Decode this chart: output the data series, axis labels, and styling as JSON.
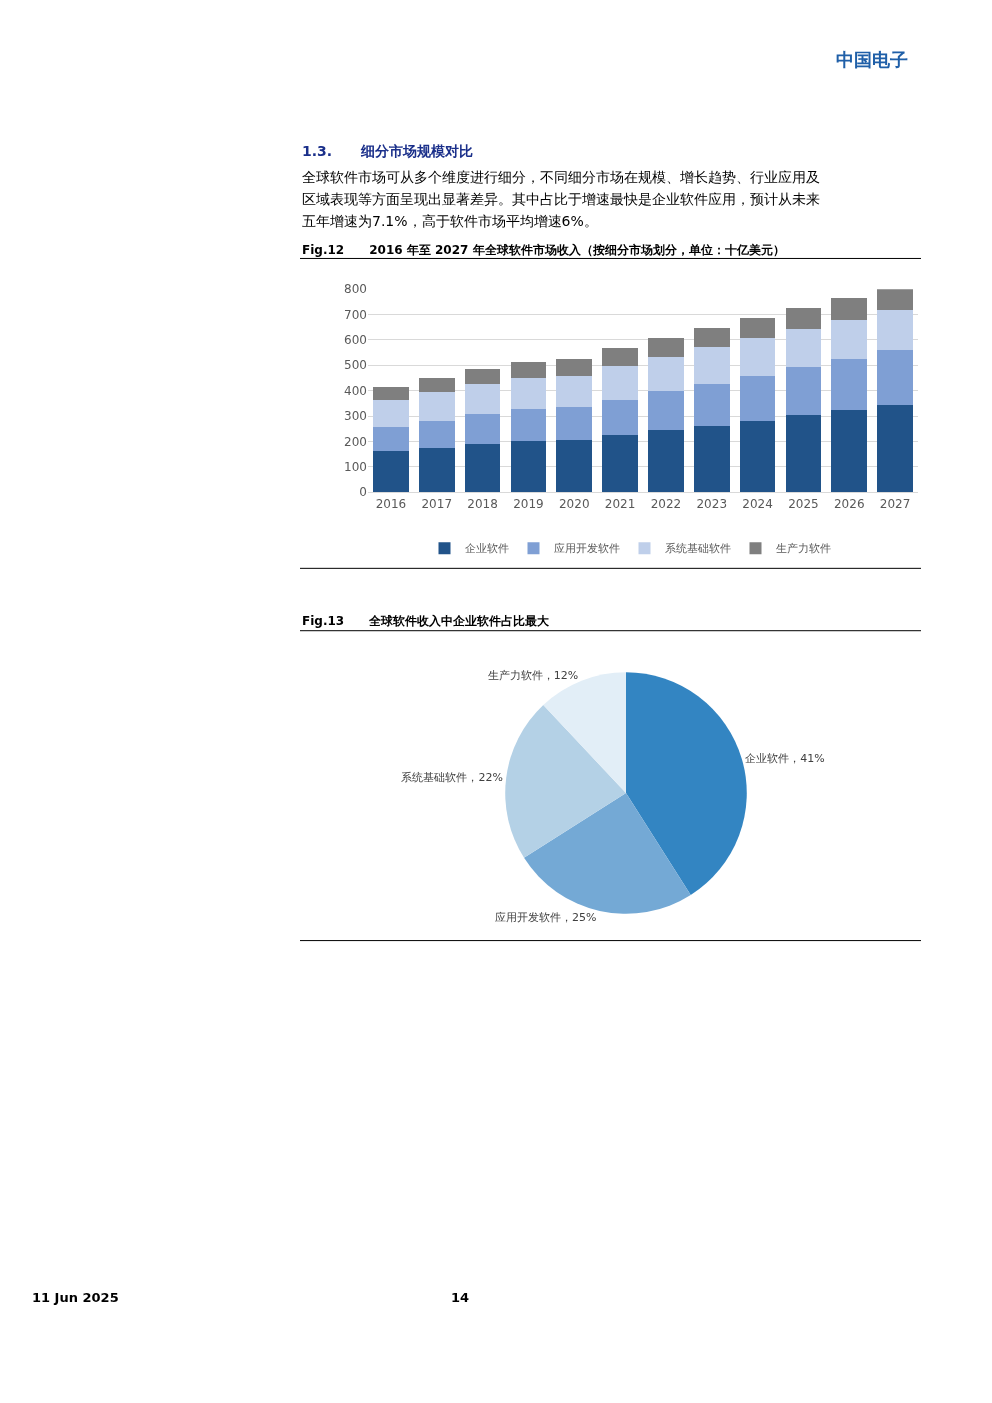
{
  "chart_data": [
    {
      "type": "bar",
      "title": "Fig.12      2016 年至 2027 年全球软件市场收入（按细分市场划分，单位：十亿美元）",
      "annotations": [
        "中国电子",
        "1.3.      细分市场规模对比",
        "全球软件市场可从多个维度进行细分，不同细分市场在规模、增长趋势、行业应用及",
        "区域表现等方面呈现出显著差异。其中占比于增速最快是企业软件应用，预计从未来",
        "五年增速为7.1%，高于软件市场平均增速6%。",
        "11 Jun 2025",
        "14"
      ],
      "categories": [
        "2016",
        "2017",
        "2018",
        "2019",
        "2020",
        "2021",
        "2022",
        "2023",
        "2024",
        "2025",
        "2026",
        "2027"
      ],
      "stacked": true,
      "series": [
        {
          "name": "企业软件",
          "color": "#215389",
          "values": [
            163,
            174,
            189,
            202,
            205,
            224,
            243,
            261,
            281,
            303,
            322,
            345
          ]
        },
        {
          "name": "应用开发软件",
          "color": "#7f9fd4",
          "values": [
            93,
            108,
            118,
            126,
            129,
            141,
            155,
            167,
            178,
            191,
            203,
            215
          ]
        },
        {
          "name": "系统基础软件",
          "color": "#bfcfea",
          "values": [
            107,
            111,
            118,
            121,
            124,
            133,
            136,
            143,
            147,
            148,
            154,
            157
          ]
        },
        {
          "name": "生产力软件",
          "color": "#7f7f7f",
          "values": [
            53,
            57,
            61,
            63,
            67,
            70,
            73,
            75,
            79,
            85,
            87,
            85
          ]
        }
      ],
      "ylim": [
        0,
        800
      ],
      "yticks": [
        0,
        100,
        200,
        300,
        400,
        500,
        600,
        700,
        800
      ],
      "grid": "y",
      "legend": "bottom"
    },
    {
      "type": "pie",
      "title": "Fig.13      全球软件收入中企业软件占比最大",
      "categories": [
        "企业软件",
        "应用开发软件",
        "系统基础软件",
        "生产力软件"
      ],
      "values": [
        41,
        25,
        22,
        12
      ],
      "colors": [
        "#3385c2",
        "#74a9d5",
        "#b4d1e6",
        "#e2eef7"
      ],
      "value_labels": [
        "41%",
        "25%",
        "22%",
        "12%"
      ],
      "legend": false
    }
  ]
}
